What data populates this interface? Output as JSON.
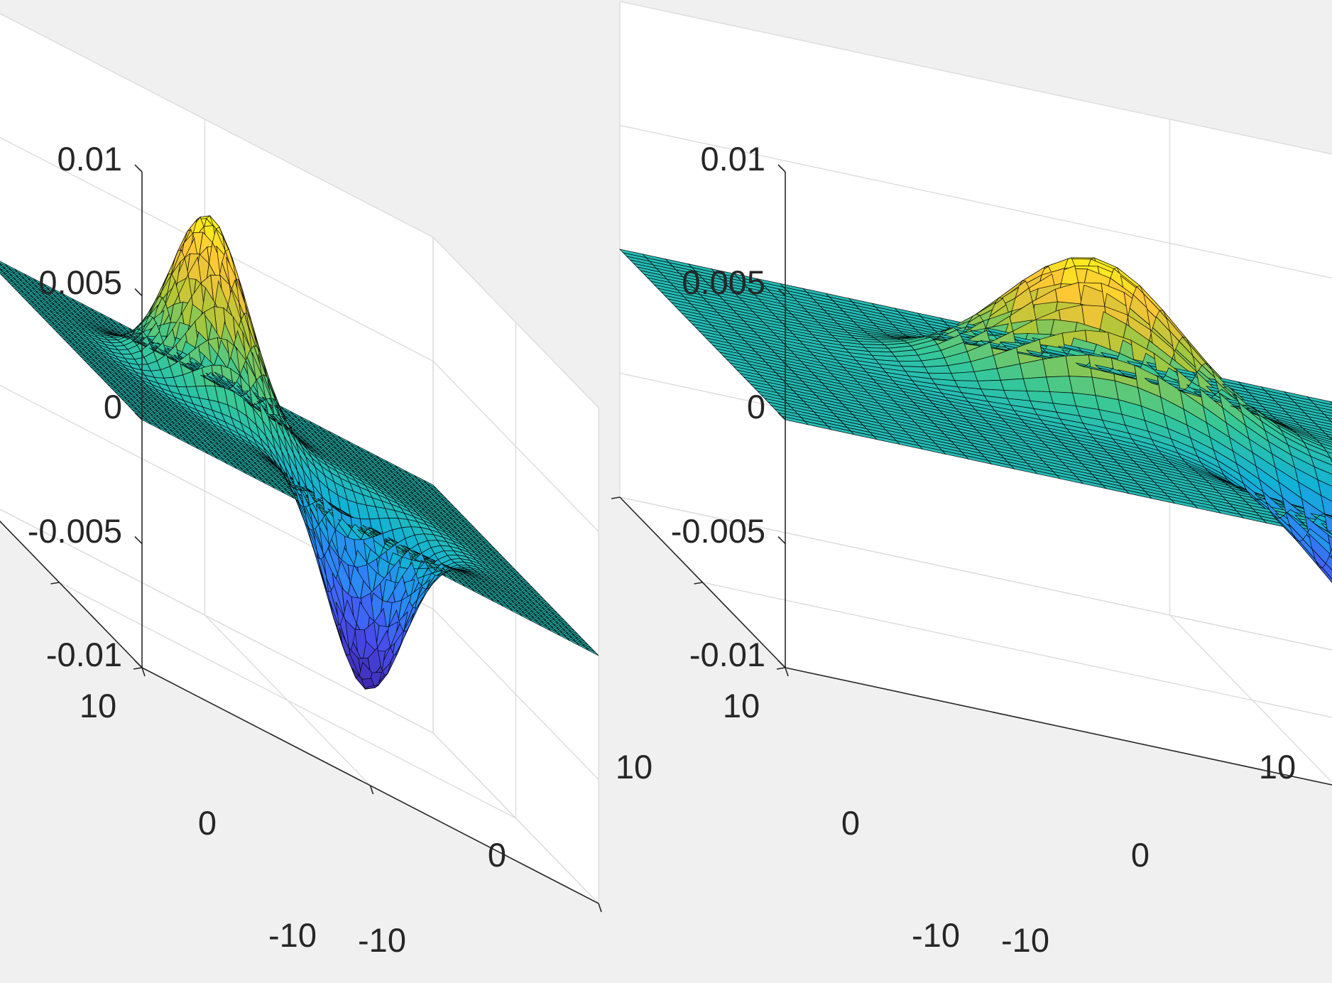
{
  "figure": {
    "background": "#f0f0f0",
    "axes_background": "#ffffff",
    "grid_color": "#dcdcdc",
    "axis_color": "#262626",
    "mesh_edge_color": "#000000",
    "colormap": "parula"
  },
  "chart_data": [
    {
      "type": "surface",
      "panel": "left",
      "title": "",
      "xlabel": "",
      "ylabel": "",
      "zlabel": "",
      "xlim": [
        -10,
        10
      ],
      "ylim": [
        -10,
        10
      ],
      "zlim": [
        -0.01,
        0.01
      ],
      "x_ticks": [
        "-10",
        "0",
        "10"
      ],
      "y_ticks": [
        "-10",
        "0",
        "10"
      ],
      "z_ticks": [
        "-0.01",
        "-0.005",
        "0",
        "0.005",
        "0.01"
      ],
      "grid": true,
      "mesh_resolution": 49,
      "features": [
        {
          "kind": "peak",
          "x": -2.5,
          "y": 2.5,
          "z": 0.0075
        },
        {
          "kind": "trough",
          "x": 2.5,
          "y": -2.5,
          "z": -0.0075
        }
      ]
    },
    {
      "type": "surface",
      "panel": "right",
      "title": "",
      "xlabel": "",
      "ylabel": "",
      "zlabel": "",
      "xlim": [
        -10,
        10
      ],
      "ylim": [
        -10,
        10
      ],
      "zlim": [
        -0.01,
        0.01
      ],
      "x_ticks": [
        "-10",
        "0",
        "10"
      ],
      "y_ticks": [
        "-10",
        "0",
        "10"
      ],
      "z_ticks": [
        "-0.01",
        "-0.005",
        "0",
        "0.005",
        "0.01"
      ],
      "grid": true,
      "mesh_resolution": 49,
      "features": [
        {
          "kind": "peak",
          "x": -2.5,
          "y": 2.5,
          "z": 0.0058
        },
        {
          "kind": "trough",
          "x": 2.5,
          "y": -2.5,
          "z": -0.0058
        }
      ]
    }
  ]
}
